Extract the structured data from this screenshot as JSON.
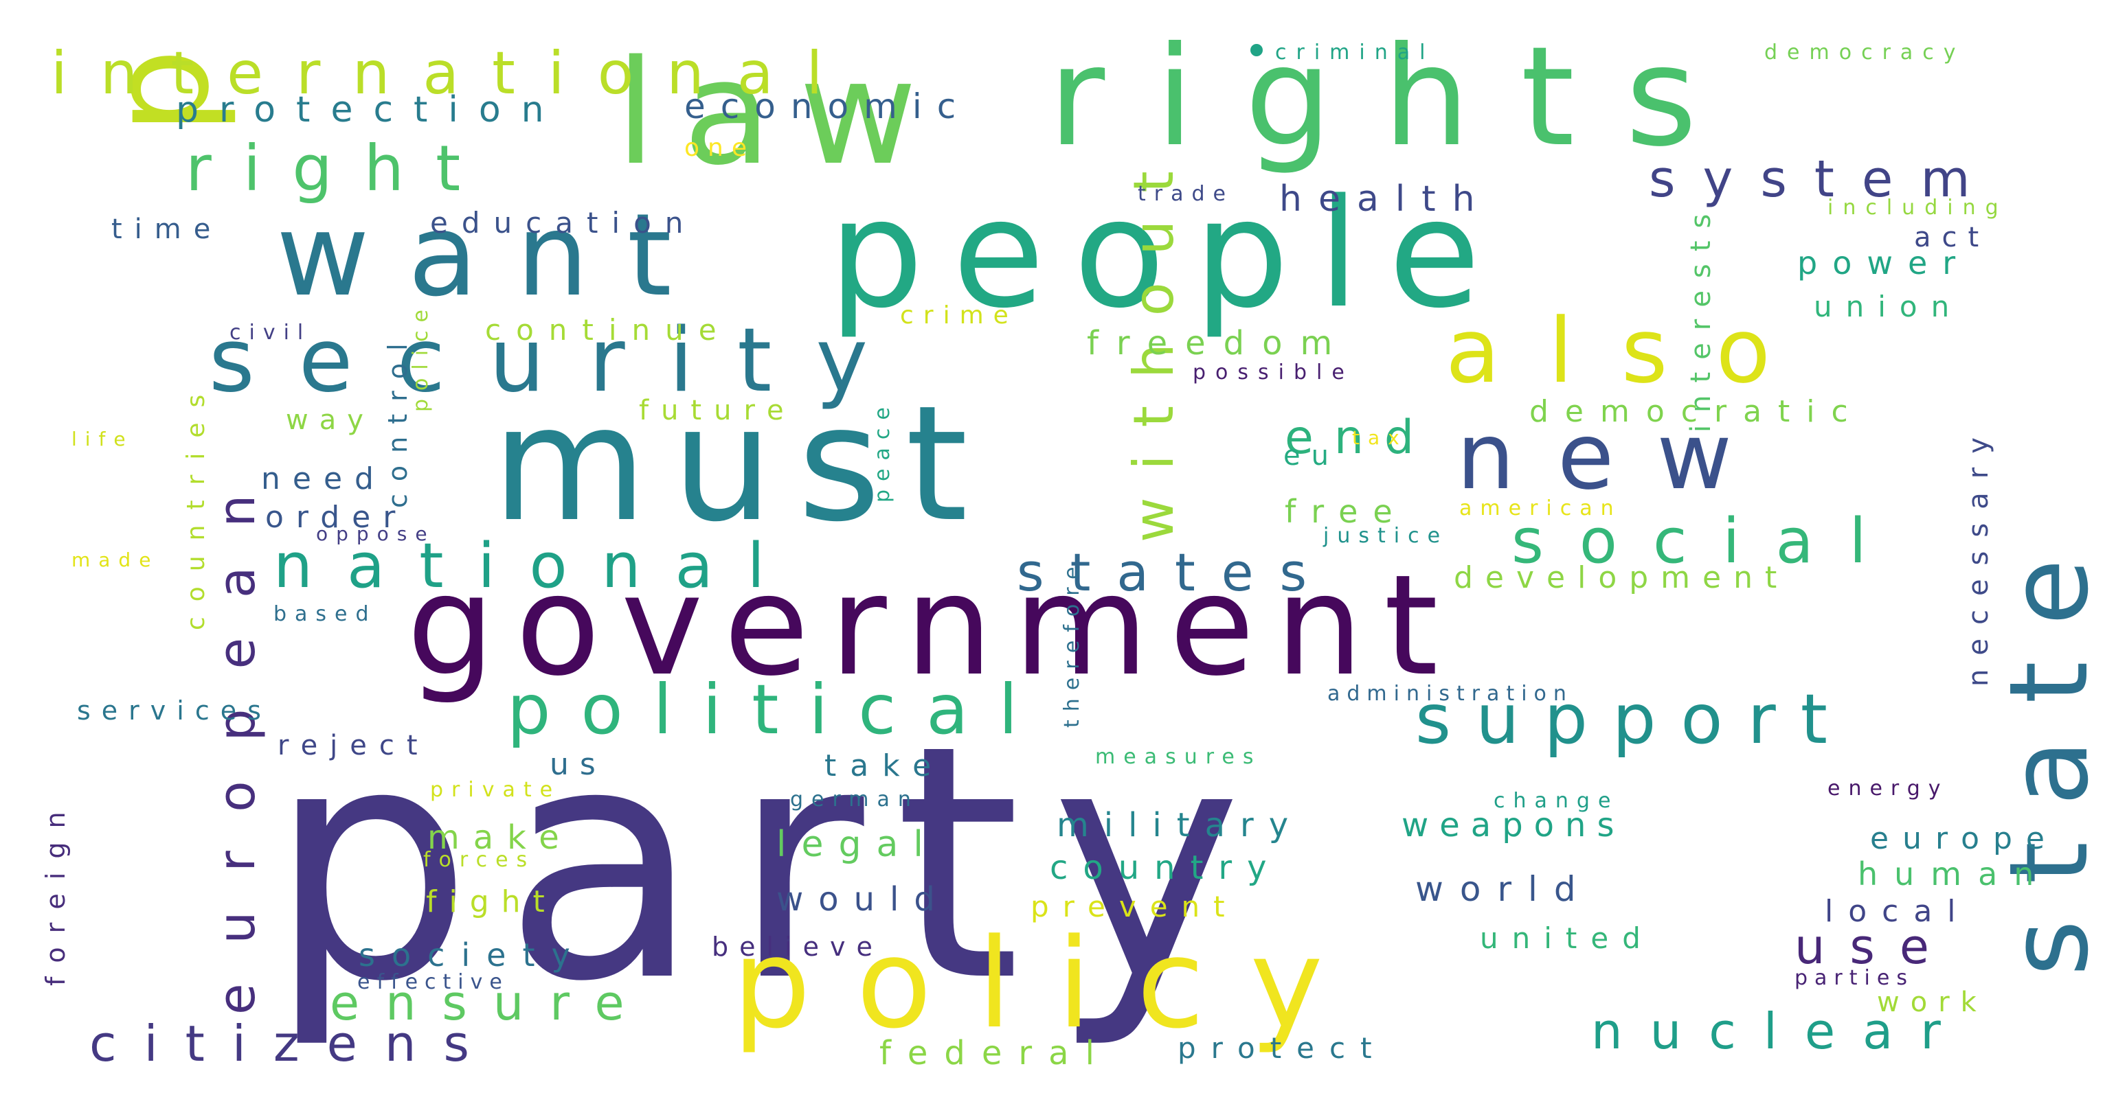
{
  "words": [
    {
      "text": "party",
      "color": "#453882"
    },
    {
      "text": "government",
      "color": "#46085c"
    },
    {
      "text": "must",
      "color": "#26828e"
    },
    {
      "text": "people",
      "color": "#22a884"
    },
    {
      "text": "rights",
      "color": "#4ac16d"
    },
    {
      "text": "public",
      "color": "#c2df23"
    },
    {
      "text": "law",
      "color": "#6ccd5a"
    },
    {
      "text": "want",
      "color": "#2a788e"
    },
    {
      "text": "policy",
      "color": "#f0e51f"
    },
    {
      "text": "state",
      "color": "#2d708e"
    },
    {
      "text": "security",
      "color": "#2a788e"
    },
    {
      "text": "also",
      "color": "#dde318"
    },
    {
      "text": "new",
      "color": "#3b518b"
    },
    {
      "text": "political",
      "color": "#2fb47c"
    },
    {
      "text": "support",
      "color": "#21918c"
    },
    {
      "text": "european",
      "color": "#472f7d"
    },
    {
      "text": "national",
      "color": "#1fa187"
    },
    {
      "text": "social",
      "color": "#35b779"
    },
    {
      "text": "international",
      "color": "#bade28"
    },
    {
      "text": "right",
      "color": "#4ec36b"
    },
    {
      "text": "without",
      "color": "#9bd93c"
    },
    {
      "text": "system",
      "color": "#414487"
    },
    {
      "text": "states",
      "color": "#31688e"
    },
    {
      "text": "citizens",
      "color": "#443983"
    },
    {
      "text": "nuclear",
      "color": "#1f9e89"
    },
    {
      "text": "ensure",
      "color": "#5ec962"
    },
    {
      "text": "use",
      "color": "#482878"
    },
    {
      "text": "end",
      "color": "#2db27d"
    },
    {
      "text": "interests",
      "color": "#54c568"
    },
    {
      "text": "necessary",
      "color": "#3e4a89"
    },
    {
      "text": "countries",
      "color": "#b2dd2d"
    },
    {
      "text": "control",
      "color": "#2e6e8e"
    },
    {
      "text": "protection",
      "color": "#287c8e"
    },
    {
      "text": "economic",
      "color": "#355f8d"
    },
    {
      "text": "health",
      "color": "#3e4989"
    },
    {
      "text": "freedom",
      "color": "#7ad151"
    },
    {
      "text": "education",
      "color": "#3b528b"
    },
    {
      "text": "continue",
      "color": "#a5db36"
    },
    {
      "text": "democratic",
      "color": "#7fd34e"
    },
    {
      "text": "development",
      "color": "#8ed645"
    },
    {
      "text": "power",
      "color": "#21a685"
    },
    {
      "text": "union",
      "color": "#31b57b"
    },
    {
      "text": "act",
      "color": "#3e4989"
    },
    {
      "text": "military",
      "color": "#25858e"
    },
    {
      "text": "weapons",
      "color": "#20a486"
    },
    {
      "text": "country",
      "color": "#22a785"
    },
    {
      "text": "legal",
      "color": "#63cb5f"
    },
    {
      "text": "would",
      "color": "#3b528b"
    },
    {
      "text": "world",
      "color": "#39568c"
    },
    {
      "text": "society",
      "color": "#2c728e"
    },
    {
      "text": "federal",
      "color": "#8bd646"
    },
    {
      "text": "protect",
      "color": "#2a788e"
    },
    {
      "text": "human",
      "color": "#4ac16d"
    },
    {
      "text": "europe",
      "color": "#277f8e"
    },
    {
      "text": "local",
      "color": "#404588"
    },
    {
      "text": "work",
      "color": "#a2da37"
    },
    {
      "text": "united",
      "color": "#34b679"
    },
    {
      "text": "free",
      "color": "#7ad151"
    },
    {
      "text": "future",
      "color": "#a8db34"
    },
    {
      "text": "need",
      "color": "#355e8d"
    },
    {
      "text": "order",
      "color": "#39568c"
    },
    {
      "text": "make",
      "color": "#84d44b"
    },
    {
      "text": "fight",
      "color": "#bade28"
    },
    {
      "text": "take",
      "color": "#2a778e"
    },
    {
      "text": "reject",
      "color": "#3f4788"
    },
    {
      "text": "believe",
      "color": "#462f7e"
    },
    {
      "text": "prevent",
      "color": "#dae319"
    },
    {
      "text": "foreign",
      "color": "#472d7b"
    },
    {
      "text": "services",
      "color": "#2a768e"
    },
    {
      "text": "way",
      "color": "#8ed645"
    },
    {
      "text": "eu",
      "color": "#25ab82"
    },
    {
      "text": "time",
      "color": "#365d8d"
    },
    {
      "text": "one",
      "color": "#fde725"
    },
    {
      "text": "crime",
      "color": "#d2e21b"
    },
    {
      "text": "criminal",
      "color": "#20a486"
    },
    {
      "text": "democracy",
      "color": "#75d054"
    },
    {
      "text": "including",
      "color": "#95d840"
    },
    {
      "text": "trade",
      "color": "#3e4a89"
    },
    {
      "text": "police",
      "color": "#a0da39"
    },
    {
      "text": "civil",
      "color": "#423f85"
    },
    {
      "text": "possible",
      "color": "#481f70"
    },
    {
      "text": "peace",
      "color": "#22a785"
    },
    {
      "text": "life",
      "color": "#d0e11c"
    },
    {
      "text": "tax",
      "color": "#f1e51d"
    },
    {
      "text": "american",
      "color": "#e7e419"
    },
    {
      "text": "therefore",
      "color": "#2d708e"
    },
    {
      "text": "justice",
      "color": "#20928c"
    },
    {
      "text": "oppose",
      "color": "#433e85"
    },
    {
      "text": "made",
      "color": "#e2e418"
    },
    {
      "text": "based",
      "color": "#2e6f8e"
    },
    {
      "text": "administration",
      "color": "#31688e"
    },
    {
      "text": "us",
      "color": "#2e6e8e"
    },
    {
      "text": "measures",
      "color": "#3bbb75"
    },
    {
      "text": "private",
      "color": "#d2e21b"
    },
    {
      "text": "german",
      "color": "#2c718e"
    },
    {
      "text": "change",
      "color": "#1f9f88"
    },
    {
      "text": "energy",
      "color": "#48186a"
    },
    {
      "text": "forces",
      "color": "#bade28"
    },
    {
      "text": "effective",
      "color": "#3a548c"
    },
    {
      "text": "parties",
      "color": "#482374"
    }
  ]
}
